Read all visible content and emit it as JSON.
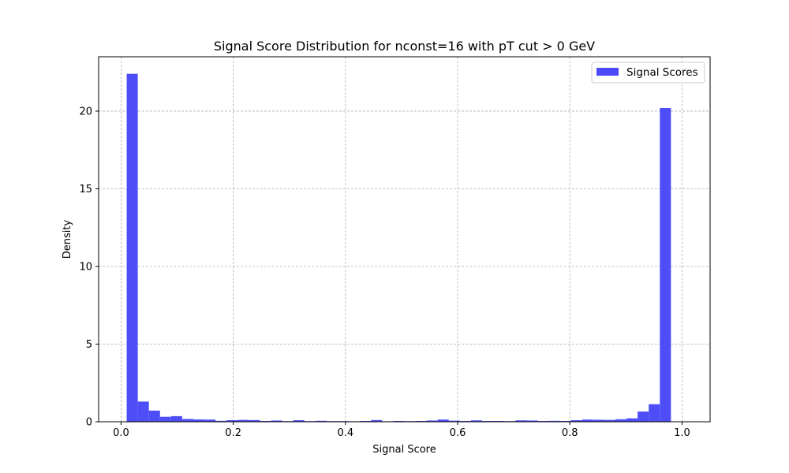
{
  "chart_data": {
    "type": "bar",
    "title": "Signal Score Distribution for nconst=16 with pT cut > 0 GeV",
    "xlabel": "Signal Score",
    "ylabel": "Density",
    "xlim": [
      -0.04,
      1.05
    ],
    "ylim": [
      0,
      23.5
    ],
    "xticks": [
      0.0,
      0.2,
      0.4,
      0.6,
      0.8,
      1.0
    ],
    "xtick_labels": [
      "0.0",
      "0.2",
      "0.4",
      "0.6",
      "0.8",
      "1.0"
    ],
    "yticks": [
      0,
      5,
      10,
      15,
      20
    ],
    "ytick_labels": [
      "0",
      "5",
      "10",
      "15",
      "20"
    ],
    "grid": true,
    "legend_position": "top-right",
    "series": [
      {
        "name": "Signal Scores",
        "color": "#4a4af8",
        "bin_start": 0.01,
        "bin_width": 0.0198,
        "values": [
          22.4,
          1.3,
          0.72,
          0.32,
          0.36,
          0.18,
          0.15,
          0.14,
          0.06,
          0.1,
          0.12,
          0.11,
          0.05,
          0.08,
          0.04,
          0.1,
          0.04,
          0.06,
          0.04,
          0.04,
          0.03,
          0.05,
          0.11,
          0.03,
          0.05,
          0.04,
          0.05,
          0.08,
          0.14,
          0.07,
          0.05,
          0.09,
          0.05,
          0.05,
          0.04,
          0.09,
          0.08,
          0.05,
          0.06,
          0.05,
          0.1,
          0.14,
          0.13,
          0.12,
          0.16,
          0.22,
          0.66,
          1.13,
          20.2
        ]
      }
    ]
  }
}
